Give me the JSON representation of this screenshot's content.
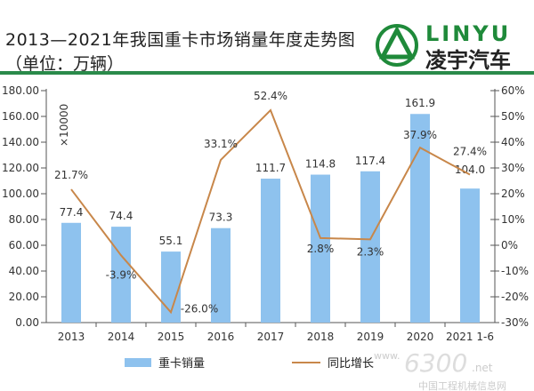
{
  "header": {
    "title": "2013—2021年我国重卡市场销量年度走势图",
    "unit": "（单位：万辆）",
    "logo_en": "LINYU",
    "logo_cn": "凌宇汽车"
  },
  "watermark": {
    "text1": "www.",
    "text2": "6300",
    "text3": ".net",
    "text4": "中国工程机械信息网"
  },
  "colors": {
    "bar": "#8ec2ee",
    "line": "#c8874a",
    "accent": "#2a8a4a"
  },
  "chart_data": {
    "type": "bar+line",
    "categories": [
      "2013",
      "2014",
      "2015",
      "2016",
      "2017",
      "2018",
      "2019",
      "2020",
      "2021 1-6"
    ],
    "series": [
      {
        "name": "重卡销量",
        "axis": "left",
        "type": "bar",
        "values": [
          77.4,
          74.4,
          55.1,
          73.3,
          111.7,
          114.8,
          117.4,
          161.9,
          104.0
        ],
        "labels": [
          "77.4",
          "74.4",
          "55.1",
          "73.3",
          "111.7",
          "114.8",
          "117.4",
          "161.9",
          "104.0"
        ]
      },
      {
        "name": "同比增长",
        "axis": "right",
        "type": "line",
        "values": [
          21.7,
          -3.9,
          -26.0,
          33.1,
          52.4,
          2.8,
          2.3,
          37.9,
          27.4
        ],
        "labels": [
          "21.7%",
          "-3.9%",
          "-26.0%",
          "33.1%",
          "52.4%",
          "2.8%",
          "2.3%",
          "37.9%",
          "27.4%"
        ]
      }
    ],
    "y_left": {
      "range": [
        0,
        180
      ],
      "ticks": [
        "0.00",
        "20.00",
        "40.00",
        "60.00",
        "80.00",
        "100.00",
        "120.00",
        "140.00",
        "160.00",
        "180.00"
      ],
      "unit_label": "×10000"
    },
    "y_right": {
      "range": [
        -30,
        60
      ],
      "ticks": [
        "-30%",
        "-20%",
        "-10%",
        "0%",
        "10%",
        "20%",
        "30%",
        "40%",
        "50%",
        "60%"
      ]
    },
    "legend": {
      "placement": "bottom"
    },
    "grid": false
  }
}
